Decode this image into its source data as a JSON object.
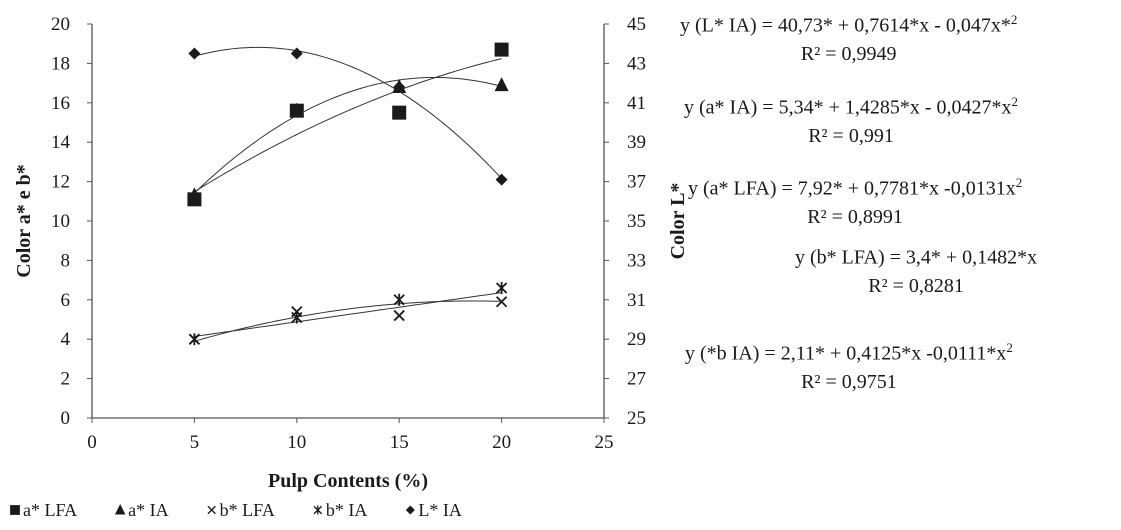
{
  "chart_data": {
    "type": "scatter",
    "xlabel": "Pulp Contents (%)",
    "ylabel_left": "Color a* e b*",
    "ylabel_right": "Color L*",
    "xlim": [
      0,
      25
    ],
    "x_ticks": [
      "0",
      "5",
      "10",
      "15",
      "20",
      "25"
    ],
    "ylim_left": [
      0,
      20
    ],
    "y_left_ticks": [
      "0",
      "2",
      "4",
      "6",
      "8",
      "10",
      "12",
      "14",
      "16",
      "18",
      "20"
    ],
    "ylim_right": [
      25,
      45
    ],
    "y_right_ticks": [
      "25",
      "27",
      "29",
      "31",
      "33",
      "35",
      "37",
      "39",
      "41",
      "43",
      "45"
    ],
    "grid": false,
    "legend_position": "bottom",
    "series": [
      {
        "name": "a* LFA",
        "marker": "square",
        "axis": "left",
        "x": [
          5,
          10,
          15,
          20
        ],
        "y": [
          11.1,
          15.6,
          15.5,
          18.7
        ],
        "fit": {
          "type": "poly",
          "coef": [
            7.92,
            0.7781,
            -0.0131
          ]
        }
      },
      {
        "name": "a*  IA",
        "marker": "triangle",
        "axis": "left",
        "x": [
          5,
          10,
          15,
          20
        ],
        "y": [
          11.3,
          15.6,
          16.8,
          16.9
        ],
        "fit": {
          "type": "poly",
          "coef": [
            5.34,
            1.4285,
            -0.0427
          ]
        }
      },
      {
        "name": "b* LFA",
        "marker": "x",
        "axis": "left",
        "x": [
          5,
          10,
          15,
          20
        ],
        "y": [
          4.0,
          5.4,
          5.2,
          5.9
        ],
        "fit": {
          "type": "poly",
          "coef": [
            3.4,
            0.1482,
            0
          ]
        }
      },
      {
        "name": "b* IA",
        "marker": "asterisk",
        "axis": "left",
        "x": [
          5,
          10,
          15,
          20
        ],
        "y": [
          4.0,
          5.1,
          6.0,
          6.6
        ],
        "fit": {
          "type": "poly",
          "coef": [
            2.11,
            0.4125,
            -0.0111
          ]
        }
      },
      {
        "name": "L* IA",
        "marker": "diamond",
        "axis": "right",
        "x": [
          5,
          10,
          15,
          20
        ],
        "y": [
          43.5,
          43.5,
          41.8,
          37.1
        ],
        "fit": {
          "type": "poly",
          "coef": [
            40.73,
            0.7614,
            -0.047
          ]
        }
      }
    ],
    "annotations": [
      {
        "equation": "y (L* IA) =  40,73* + 0,7614*x - 0,047x*",
        "sup": "2",
        "r2": "R² = 0,9949"
      },
      {
        "equation": "y (a* IA) =  5,34* + 1,4285*x - 0,0427*x",
        "sup": "2",
        "r2": "R² = 0,991"
      },
      {
        "equation": "y (a* LFA) = 7,92* + 0,7781*x -0,0131x",
        "sup": "2",
        "r2": "R² = 0,8991"
      },
      {
        "equation": "y (b* LFA) = 3,4* + 0,1482*x",
        "sup": "",
        "r2": "R² = 0,8281"
      },
      {
        "equation": "y (*b IA) =  2,11* + 0,4125*x -0,0111*x",
        "sup": "2",
        "r2": "R² = 0,9751"
      }
    ]
  }
}
